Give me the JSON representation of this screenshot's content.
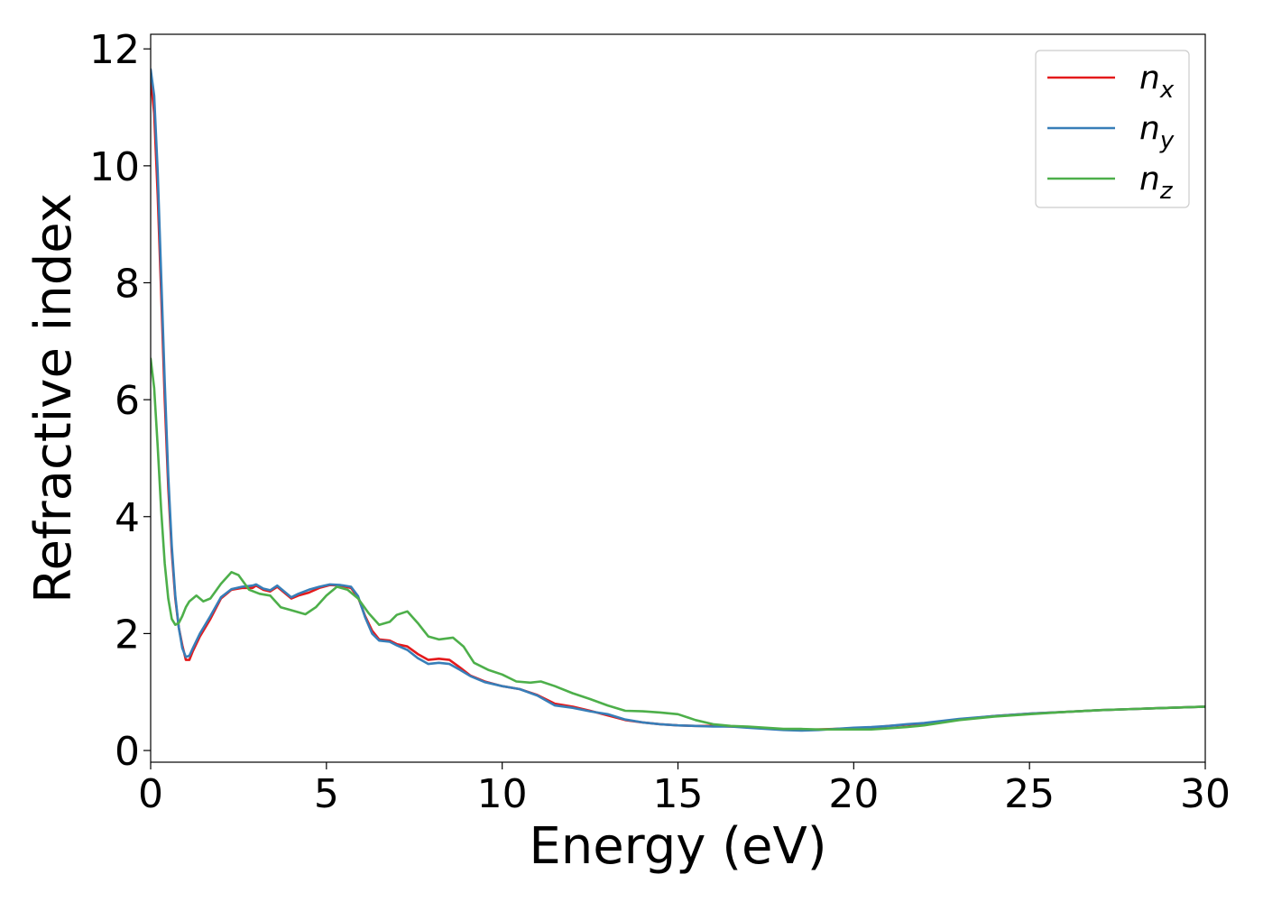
{
  "chart_data": {
    "type": "line",
    "title": "",
    "xlabel": "Energy (eV)",
    "ylabel": "Refractive index",
    "xlim": [
      0,
      30
    ],
    "ylim": [
      -0.2,
      12.25
    ],
    "xticks": [
      0,
      5,
      10,
      15,
      20,
      25,
      30
    ],
    "yticks": [
      0,
      2,
      4,
      6,
      8,
      10,
      12
    ],
    "grid": false,
    "legend_position": "top-right",
    "series": [
      {
        "name": "n",
        "subscript": "x",
        "color": "#e41a1c",
        "x": [
          0,
          0.1,
          0.2,
          0.3,
          0.4,
          0.5,
          0.6,
          0.7,
          0.8,
          0.9,
          1.0,
          1.1,
          1.2,
          1.4,
          1.7,
          2.0,
          2.3,
          2.6,
          2.9,
          3.0,
          3.2,
          3.4,
          3.6,
          3.8,
          4.0,
          4.2,
          4.5,
          4.8,
          5.1,
          5.4,
          5.7,
          5.9,
          6.1,
          6.3,
          6.5,
          6.8,
          7.0,
          7.3,
          7.6,
          7.9,
          8.2,
          8.5,
          8.8,
          9.1,
          9.5,
          10.0,
          10.5,
          11.0,
          11.5,
          12.0,
          12.5,
          13.0,
          13.5,
          14.0,
          14.5,
          15.0,
          15.5,
          16.0,
          16.5,
          17.0,
          17.5,
          18.0,
          18.5,
          19.0,
          19.5,
          20.0,
          20.5,
          21.0,
          21.5,
          22.0,
          23.0,
          24.0,
          25.0,
          26.0,
          27.0,
          28.0,
          29.0,
          30.0
        ],
        "values": [
          11.5,
          10.9,
          9.5,
          7.8,
          6.0,
          4.5,
          3.4,
          2.6,
          2.1,
          1.8,
          1.55,
          1.55,
          1.7,
          1.95,
          2.25,
          2.6,
          2.75,
          2.78,
          2.78,
          2.82,
          2.75,
          2.72,
          2.8,
          2.7,
          2.6,
          2.65,
          2.7,
          2.78,
          2.83,
          2.82,
          2.78,
          2.62,
          2.3,
          2.05,
          1.9,
          1.88,
          1.82,
          1.78,
          1.65,
          1.55,
          1.57,
          1.55,
          1.42,
          1.28,
          1.18,
          1.1,
          1.05,
          0.95,
          0.8,
          0.75,
          0.68,
          0.6,
          0.52,
          0.48,
          0.45,
          0.43,
          0.42,
          0.42,
          0.41,
          0.4,
          0.38,
          0.36,
          0.35,
          0.36,
          0.37,
          0.38,
          0.39,
          0.42,
          0.44,
          0.46,
          0.53,
          0.59,
          0.63,
          0.66,
          0.69,
          0.71,
          0.73,
          0.75
        ]
      },
      {
        "name": "n",
        "subscript": "y",
        "color": "#377eb8",
        "x": [
          0,
          0.1,
          0.2,
          0.3,
          0.4,
          0.5,
          0.6,
          0.7,
          0.8,
          0.9,
          1.0,
          1.1,
          1.2,
          1.4,
          1.7,
          2.0,
          2.3,
          2.6,
          2.9,
          3.0,
          3.2,
          3.4,
          3.6,
          3.8,
          4.0,
          4.2,
          4.5,
          4.8,
          5.1,
          5.4,
          5.7,
          5.9,
          6.1,
          6.3,
          6.5,
          6.8,
          7.0,
          7.3,
          7.6,
          7.9,
          8.2,
          8.5,
          8.8,
          9.1,
          9.5,
          10.0,
          10.5,
          11.0,
          11.5,
          12.0,
          12.5,
          13.0,
          13.5,
          14.0,
          14.5,
          15.0,
          15.5,
          16.0,
          16.5,
          17.0,
          17.5,
          18.0,
          18.5,
          19.0,
          19.5,
          20.0,
          20.5,
          21.0,
          21.5,
          22.0,
          23.0,
          24.0,
          25.0,
          26.0,
          27.0,
          28.0,
          29.0,
          30.0
        ],
        "values": [
          11.65,
          11.2,
          9.9,
          8.1,
          6.3,
          4.7,
          3.5,
          2.65,
          2.1,
          1.75,
          1.6,
          1.62,
          1.75,
          2.0,
          2.3,
          2.62,
          2.76,
          2.8,
          2.82,
          2.84,
          2.77,
          2.74,
          2.82,
          2.72,
          2.62,
          2.68,
          2.75,
          2.8,
          2.84,
          2.83,
          2.8,
          2.64,
          2.28,
          2.0,
          1.88,
          1.86,
          1.8,
          1.72,
          1.58,
          1.48,
          1.5,
          1.48,
          1.38,
          1.27,
          1.17,
          1.1,
          1.05,
          0.94,
          0.77,
          0.73,
          0.67,
          0.62,
          0.53,
          0.48,
          0.45,
          0.43,
          0.42,
          0.41,
          0.41,
          0.39,
          0.37,
          0.35,
          0.34,
          0.35,
          0.37,
          0.39,
          0.4,
          0.42,
          0.45,
          0.47,
          0.54,
          0.59,
          0.63,
          0.66,
          0.69,
          0.71,
          0.73,
          0.75
        ]
      },
      {
        "name": "n",
        "subscript": "z",
        "color": "#4daf4a",
        "x": [
          0,
          0.1,
          0.2,
          0.3,
          0.4,
          0.5,
          0.6,
          0.7,
          0.8,
          0.9,
          1.0,
          1.1,
          1.3,
          1.5,
          1.7,
          2.0,
          2.3,
          2.5,
          2.8,
          3.1,
          3.4,
          3.7,
          4.0,
          4.4,
          4.7,
          5.0,
          5.3,
          5.6,
          5.9,
          6.2,
          6.5,
          6.8,
          7.0,
          7.3,
          7.6,
          7.9,
          8.2,
          8.6,
          8.9,
          9.2,
          9.6,
          10.0,
          10.4,
          10.8,
          11.1,
          11.5,
          12.0,
          12.5,
          13.0,
          13.5,
          14.0,
          14.5,
          15.0,
          15.5,
          16.0,
          16.5,
          17.0,
          17.5,
          18.0,
          18.5,
          19.0,
          19.5,
          20.0,
          20.5,
          21.0,
          21.5,
          22.0,
          23.0,
          24.0,
          25.0,
          26.0,
          27.0,
          28.0,
          29.0,
          30.0
        ],
        "values": [
          6.7,
          6.2,
          5.2,
          4.1,
          3.2,
          2.6,
          2.25,
          2.15,
          2.18,
          2.3,
          2.45,
          2.55,
          2.65,
          2.55,
          2.6,
          2.85,
          3.05,
          3.0,
          2.75,
          2.68,
          2.65,
          2.45,
          2.4,
          2.33,
          2.45,
          2.65,
          2.8,
          2.75,
          2.6,
          2.35,
          2.15,
          2.2,
          2.32,
          2.38,
          2.18,
          1.95,
          1.9,
          1.93,
          1.78,
          1.5,
          1.38,
          1.3,
          1.18,
          1.16,
          1.18,
          1.1,
          0.98,
          0.88,
          0.77,
          0.68,
          0.67,
          0.65,
          0.62,
          0.52,
          0.45,
          0.42,
          0.41,
          0.39,
          0.37,
          0.37,
          0.36,
          0.36,
          0.36,
          0.36,
          0.38,
          0.4,
          0.43,
          0.52,
          0.58,
          0.62,
          0.66,
          0.69,
          0.71,
          0.73,
          0.75
        ]
      }
    ]
  }
}
